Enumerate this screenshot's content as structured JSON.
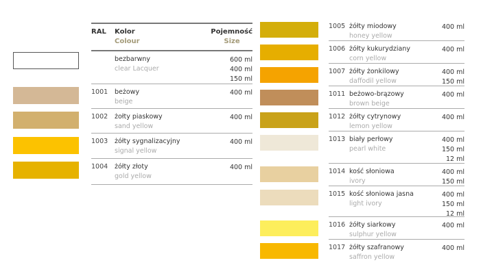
{
  "header": {
    "ral": "RAL",
    "kolor": "Kolor",
    "colour": "Colour",
    "pojemnosc": "Pojemność",
    "size": "Size"
  },
  "left": [
    {
      "ral": "",
      "pl": "bezbarwny",
      "en": "clear Lacquer",
      "sizes": [
        "600 ml",
        "400 ml",
        "150 ml"
      ],
      "color": "#ffffff"
    },
    {
      "ral": "1001",
      "pl": "beżowy",
      "en": "beige",
      "sizes": [
        "400 ml"
      ],
      "color": "#d4b896"
    },
    {
      "ral": "1002",
      "pl": "żołty piaskowy",
      "en": "sand yellow",
      "sizes": [
        "400 ml"
      ],
      "color": "#d2b06e"
    },
    {
      "ral": "1003",
      "pl": "żółty sygnalizacyjny",
      "en": "signal yellow",
      "sizes": [
        "400 ml"
      ],
      "color": "#fcc200"
    },
    {
      "ral": "1004",
      "pl": "żółty złoty",
      "en": "gold yellow",
      "sizes": [
        "400 ml"
      ],
      "color": "#e6b200"
    }
  ],
  "right": [
    {
      "ral": "1005",
      "pl": "żółty miodowy",
      "en": "honey yellow",
      "sizes": [
        "400 ml"
      ],
      "color": "#d4ae0a"
    },
    {
      "ral": "1006",
      "pl": "żółty kukurydziany",
      "en": "corn yellow",
      "sizes": [
        "400 ml"
      ],
      "color": "#e6ae00"
    },
    {
      "ral": "1007",
      "pl": "żółty żonkilowy",
      "en": "daffodil yellow",
      "sizes": [
        "400 ml",
        "150 ml"
      ],
      "color": "#f5a300"
    },
    {
      "ral": "1011",
      "pl": "beżowo-brązowy",
      "en": "brown beige",
      "sizes": [
        "400 ml"
      ],
      "color": "#c08e5a"
    },
    {
      "ral": "1012",
      "pl": "żółty cytrynowy",
      "en": "lemon yellow",
      "sizes": [
        "400 ml"
      ],
      "color": "#c9a21a"
    },
    {
      "ral": "1013",
      "pl": "biały perłowy",
      "en": "pearl white",
      "sizes": [
        "400 ml",
        "150 ml",
        "12 ml"
      ],
      "color": "#efe8d8"
    },
    {
      "ral": "1014",
      "pl": "kość słoniowa",
      "en": "ivory",
      "sizes": [
        "400 ml",
        "150 ml"
      ],
      "color": "#e8d0a0"
    },
    {
      "ral": "1015",
      "pl": "kość słoniowa jasna",
      "en": "light ivory",
      "sizes": [
        "400 ml",
        "150 ml",
        "12 ml"
      ],
      "color": "#ecdcbc"
    },
    {
      "ral": "1016",
      "pl": "żółty siarkowy",
      "en": "sulphur yellow",
      "sizes": [
        "400 ml"
      ],
      "color": "#fdee5c"
    },
    {
      "ral": "1017",
      "pl": "żółty szafranowy",
      "en": "saffron yellow",
      "sizes": [
        "400 ml"
      ],
      "color": "#f8b800"
    }
  ]
}
